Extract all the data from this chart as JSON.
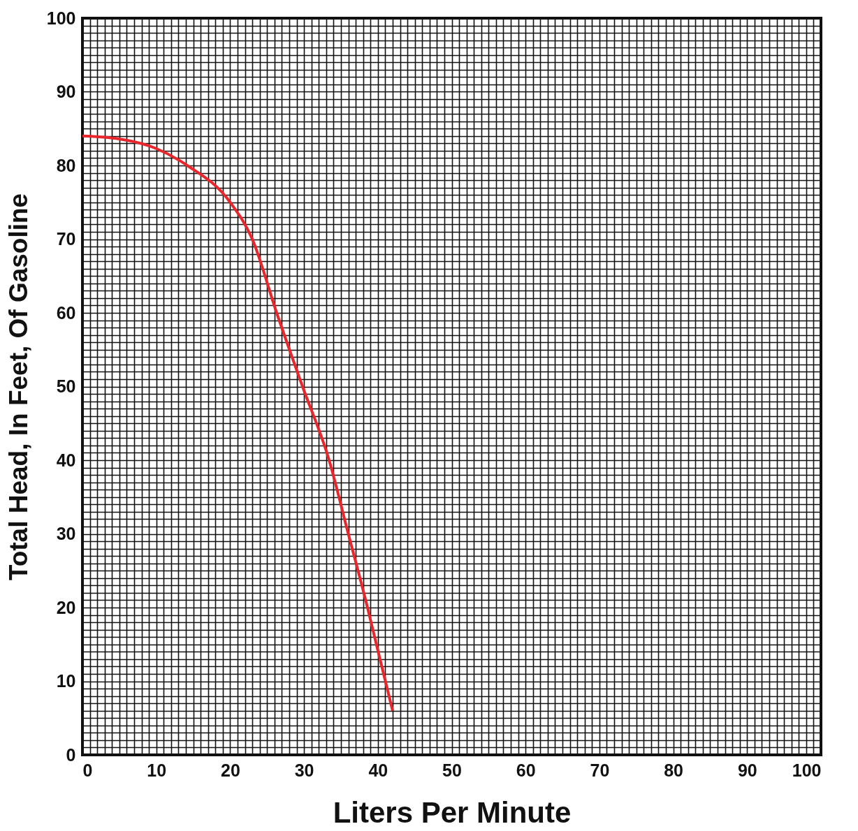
{
  "chart_data": {
    "type": "line",
    "xlabel": "Liters  Per Minute",
    "ylabel": "Total Head, In Feet, Of Gasoline",
    "x": [
      0,
      5,
      10,
      14.2,
      20,
      23,
      26.3,
      29.8,
      33.4,
      36,
      38.6,
      39.8,
      42
    ],
    "series": [
      {
        "color": "#e8262b",
        "values": [
          84,
          83.6,
          82.3,
          80,
          75,
          70,
          60,
          50,
          40,
          30,
          20,
          15,
          6
        ]
      }
    ],
    "xlim": [
      0,
      100
    ],
    "ylim": [
      0,
      100
    ],
    "xticks": [
      0,
      {
        "value": 1,
        "label": null
      },
      {
        "value": 2,
        "label": null
      },
      {
        "value": 3,
        "label": null
      },
      {
        "value": 4,
        "label": null
      },
      {
        "value": 5,
        "label": null
      },
      {
        "value": 6,
        "label": null
      },
      {
        "value": 7,
        "label": null
      },
      {
        "value": 8,
        "label": null
      },
      {
        "value": 9,
        "label": null
      },
      10,
      {
        "value": 11,
        "label": null
      },
      {
        "value": 12,
        "label": null
      },
      {
        "value": 13,
        "label": null
      },
      {
        "value": 14,
        "label": null
      },
      {
        "value": 15,
        "label": null
      },
      {
        "value": 16,
        "label": null
      },
      {
        "value": 17,
        "label": null
      },
      {
        "value": 18,
        "label": null
      },
      {
        "value": 19,
        "label": null
      },
      20,
      {
        "value": 21,
        "label": null
      },
      {
        "value": 22,
        "label": null
      },
      {
        "value": 23,
        "label": null
      },
      {
        "value": 24,
        "label": null
      },
      {
        "value": 25,
        "label": null
      },
      {
        "value": 26,
        "label": null
      },
      {
        "value": 27,
        "label": null
      },
      {
        "value": 28,
        "label": null
      },
      {
        "value": 29,
        "label": null
      },
      30,
      {
        "value": 31,
        "label": null
      },
      {
        "value": 32,
        "label": null
      },
      {
        "value": 33,
        "label": null
      },
      {
        "value": 34,
        "label": null
      },
      {
        "value": 35,
        "label": null
      },
      {
        "value": 36,
        "label": null
      },
      {
        "value": 37,
        "label": null
      },
      {
        "value": 38,
        "label": null
      },
      {
        "value": 39,
        "label": null
      },
      40,
      {
        "value": 41,
        "label": null
      },
      {
        "value": 42,
        "label": null
      },
      {
        "value": 43,
        "label": null
      },
      {
        "value": 44,
        "label": null
      },
      {
        "value": 45,
        "label": null
      },
      {
        "value": 46,
        "label": null
      },
      {
        "value": 47,
        "label": null
      },
      {
        "value": 48,
        "label": null
      },
      {
        "value": 49,
        "label": null
      },
      50,
      {
        "value": 51,
        "label": null
      },
      {
        "value": 52,
        "label": null
      },
      {
        "value": 53,
        "label": null
      },
      {
        "value": 54,
        "label": null
      },
      {
        "value": 55,
        "label": null
      },
      {
        "value": 56,
        "label": null
      },
      {
        "value": 57,
        "label": null
      },
      {
        "value": 58,
        "label": null
      },
      {
        "value": 59,
        "label": null
      },
      60,
      {
        "value": 61,
        "label": null
      },
      {
        "value": 62,
        "label": null
      },
      {
        "value": 63,
        "label": null
      },
      {
        "value": 64,
        "label": null
      },
      {
        "value": 65,
        "label": null
      },
      {
        "value": 66,
        "label": null
      },
      {
        "value": 67,
        "label": null
      },
      {
        "value": 68,
        "label": null
      },
      {
        "value": 69,
        "label": null
      },
      70,
      {
        "value": 71,
        "label": null
      },
      {
        "value": 72,
        "label": null
      },
      {
        "value": 73,
        "label": null
      },
      {
        "value": 74,
        "label": null
      },
      {
        "value": 75,
        "label": null
      },
      {
        "value": 76,
        "label": null
      },
      {
        "value": 77,
        "label": null
      },
      {
        "value": 78,
        "label": null
      },
      {
        "value": 79,
        "label": null
      },
      80,
      {
        "value": 81,
        "label": null
      },
      {
        "value": 82,
        "label": null
      },
      {
        "value": 83,
        "label": null
      },
      {
        "value": 84,
        "label": null
      },
      {
        "value": 85,
        "label": null
      },
      {
        "value": 86,
        "label": null
      },
      {
        "value": 87,
        "label": null
      },
      {
        "value": 88,
        "label": null
      },
      {
        "value": 89,
        "label": null
      },
      90,
      {
        "value": 91,
        "label": null
      },
      {
        "value": 92,
        "label": null
      },
      {
        "value": 93,
        "label": null
      },
      {
        "value": 94,
        "label": null
      },
      {
        "value": 95,
        "label": null
      },
      {
        "value": 96,
        "label": null
      },
      {
        "value": 97,
        "label": null
      },
      {
        "value": 98,
        "label": null
      },
      {
        "value": 99,
        "label": null
      },
      100
    ],
    "yticks": [
      0,
      {
        "value": 1,
        "label": null
      },
      {
        "value": 2,
        "label": null
      },
      {
        "value": 3,
        "label": null
      },
      {
        "value": 4,
        "label": null
      },
      {
        "value": 5,
        "label": null
      },
      {
        "value": 6,
        "label": null
      },
      {
        "value": 7,
        "label": null
      },
      {
        "value": 8,
        "label": null
      },
      {
        "value": 9,
        "label": null
      },
      10,
      {
        "value": 11,
        "label": null
      },
      {
        "value": 12,
        "label": null
      },
      {
        "value": 13,
        "label": null
      },
      {
        "value": 14,
        "label": null
      },
      {
        "value": 15,
        "label": null
      },
      {
        "value": 16,
        "label": null
      },
      {
        "value": 17,
        "label": null
      },
      {
        "value": 18,
        "label": null
      },
      {
        "value": 19,
        "label": null
      },
      20,
      {
        "value": 21,
        "label": null
      },
      {
        "value": 22,
        "label": null
      },
      {
        "value": 23,
        "label": null
      },
      {
        "value": 24,
        "label": null
      },
      {
        "value": 25,
        "label": null
      },
      {
        "value": 26,
        "label": null
      },
      {
        "value": 27,
        "label": null
      },
      {
        "value": 28,
        "label": null
      },
      {
        "value": 29,
        "label": null
      },
      30,
      {
        "value": 31,
        "label": null
      },
      {
        "value": 32,
        "label": null
      },
      {
        "value": 33,
        "label": null
      },
      {
        "value": 34,
        "label": null
      },
      {
        "value": 35,
        "label": null
      },
      {
        "value": 36,
        "label": null
      },
      {
        "value": 37,
        "label": null
      },
      {
        "value": 38,
        "label": null
      },
      {
        "value": 39,
        "label": null
      },
      40,
      {
        "value": 41,
        "label": null
      },
      {
        "value": 42,
        "label": null
      },
      {
        "value": 43,
        "label": null
      },
      {
        "value": 44,
        "label": null
      },
      {
        "value": 45,
        "label": null
      },
      {
        "value": 46,
        "label": null
      },
      {
        "value": 47,
        "label": null
      },
      {
        "value": 48,
        "label": null
      },
      {
        "value": 49,
        "label": null
      },
      50,
      {
        "value": 51,
        "label": null
      },
      {
        "value": 52,
        "label": null
      },
      {
        "value": 53,
        "label": null
      },
      {
        "value": 54,
        "label": null
      },
      {
        "value": 55,
        "label": null
      },
      {
        "value": 56,
        "label": null
      },
      {
        "value": 57,
        "label": null
      },
      {
        "value": 58,
        "label": null
      },
      {
        "value": 59,
        "label": null
      },
      60,
      {
        "value": 61,
        "label": null
      },
      {
        "value": 62,
        "label": null
      },
      {
        "value": 63,
        "label": null
      },
      {
        "value": 64,
        "label": null
      },
      {
        "value": 65,
        "label": null
      },
      {
        "value": 66,
        "label": null
      },
      {
        "value": 67,
        "label": null
      },
      {
        "value": 68,
        "label": null
      },
      {
        "value": 69,
        "label": null
      },
      70,
      {
        "value": 71,
        "label": null
      },
      {
        "value": 72,
        "label": null
      },
      {
        "value": 73,
        "label": null
      },
      {
        "value": 74,
        "label": null
      },
      {
        "value": 75,
        "label": null
      },
      {
        "value": 76,
        "label": null
      },
      {
        "value": 77,
        "label": null
      },
      {
        "value": 78,
        "label": null
      },
      {
        "value": 79,
        "label": null
      },
      80,
      {
        "value": 81,
        "label": null
      },
      {
        "value": 82,
        "label": null
      },
      {
        "value": 83,
        "label": null
      },
      {
        "value": 84,
        "label": null
      },
      {
        "value": 85,
        "label": null
      },
      {
        "value": 86,
        "label": null
      },
      {
        "value": 87,
        "label": null
      },
      {
        "value": 88,
        "label": null
      },
      {
        "value": 89,
        "label": null
      },
      90,
      {
        "value": 91,
        "label": null
      },
      {
        "value": 92,
        "label": null
      },
      {
        "value": 93,
        "label": null
      },
      {
        "value": 94,
        "label": null
      },
      {
        "value": 95,
        "label": null
      },
      {
        "value": 96,
        "label": null
      },
      {
        "value": 97,
        "label": null
      },
      {
        "value": 98,
        "label": null
      },
      {
        "value": 99,
        "label": null
      },
      100
    ],
    "grid": true,
    "marker": "none",
    "line_style": "solid"
  }
}
